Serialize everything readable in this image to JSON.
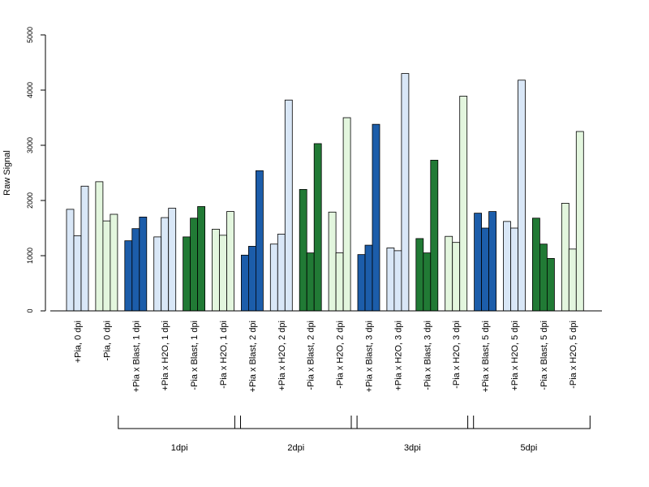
{
  "chart_data": {
    "type": "bar",
    "ylabel": "Raw Signal",
    "xlabel": "",
    "ylim": [
      0,
      5000
    ],
    "yticks": [
      0,
      1000,
      2000,
      3000,
      4000,
      5000
    ],
    "grid": false,
    "colors": {
      "pia_plus_light": "#d9e7f7",
      "pia_minus_light": "#e3f6de",
      "pia_plus_blast": "#1c5daa",
      "pia_minus_blast": "#217a35",
      "outline": "#000000"
    },
    "groups": [
      {
        "label": "+Pia, 0 dpi",
        "values": [
          1840,
          1360,
          2260
        ],
        "color": "pia_plus_light"
      },
      {
        "label": "-Pia, 0 dpi",
        "values": [
          2340,
          1630,
          1750
        ],
        "color": "pia_minus_light"
      },
      {
        "label": "+Pia x Blast, 1 dpi",
        "values": [
          1270,
          1490,
          1700
        ],
        "color": "pia_plus_blast"
      },
      {
        "label": "+Pia x H2O, 1 dpi",
        "values": [
          1340,
          1690,
          1860
        ],
        "color": "pia_plus_light"
      },
      {
        "label": "-Pia x Blast, 1 dpi",
        "values": [
          1340,
          1680,
          1890
        ],
        "color": "pia_minus_blast"
      },
      {
        "label": "-Pia x H2O, 1 dpi",
        "values": [
          1480,
          1370,
          1800
        ],
        "color": "pia_minus_light"
      },
      {
        "label": "+Pia x Blast, 2 dpi",
        "values": [
          1010,
          1170,
          2540
        ],
        "color": "pia_plus_blast"
      },
      {
        "label": "+Pia x H2O, 2 dpi",
        "values": [
          1210,
          1390,
          3820
        ],
        "color": "pia_plus_light"
      },
      {
        "label": "-Pia x Blast, 2 dpi",
        "values": [
          2200,
          1050,
          3030
        ],
        "color": "pia_minus_blast"
      },
      {
        "label": "-Pia x H2O, 2 dpi",
        "values": [
          1790,
          1050,
          3500
        ],
        "color": "pia_minus_light"
      },
      {
        "label": "+Pia x Blast, 3 dpi",
        "values": [
          1020,
          1190,
          3380
        ],
        "color": "pia_plus_blast"
      },
      {
        "label": "+Pia x H2O, 3 dpi",
        "values": [
          1140,
          1090,
          4300
        ],
        "color": "pia_plus_light"
      },
      {
        "label": "-Pia x Blast, 3 dpi",
        "values": [
          1310,
          1050,
          2730
        ],
        "color": "pia_minus_blast"
      },
      {
        "label": "-Pia x H2O, 3 dpi",
        "values": [
          1350,
          1240,
          3890
        ],
        "color": "pia_minus_light"
      },
      {
        "label": "+Pia x Blast, 5 dpi",
        "values": [
          1770,
          1500,
          1800
        ],
        "color": "pia_plus_blast"
      },
      {
        "label": "+Pia x H2O, 5 dpi",
        "values": [
          1620,
          1500,
          4180
        ],
        "color": "pia_plus_light"
      },
      {
        "label": "-Pia x Blast, 5 dpi",
        "values": [
          1680,
          1210,
          950
        ],
        "color": "pia_minus_blast"
      },
      {
        "label": "-Pia x H2O, 5 dpi",
        "values": [
          1950,
          1120,
          3250
        ],
        "color": "pia_minus_light"
      }
    ],
    "brackets": [
      {
        "label": "1dpi",
        "first_group": 2,
        "last_group": 5
      },
      {
        "label": "2dpi",
        "first_group": 6,
        "last_group": 9
      },
      {
        "label": "3dpi",
        "first_group": 10,
        "last_group": 13
      },
      {
        "label": "5dpi",
        "first_group": 14,
        "last_group": 17
      }
    ]
  }
}
